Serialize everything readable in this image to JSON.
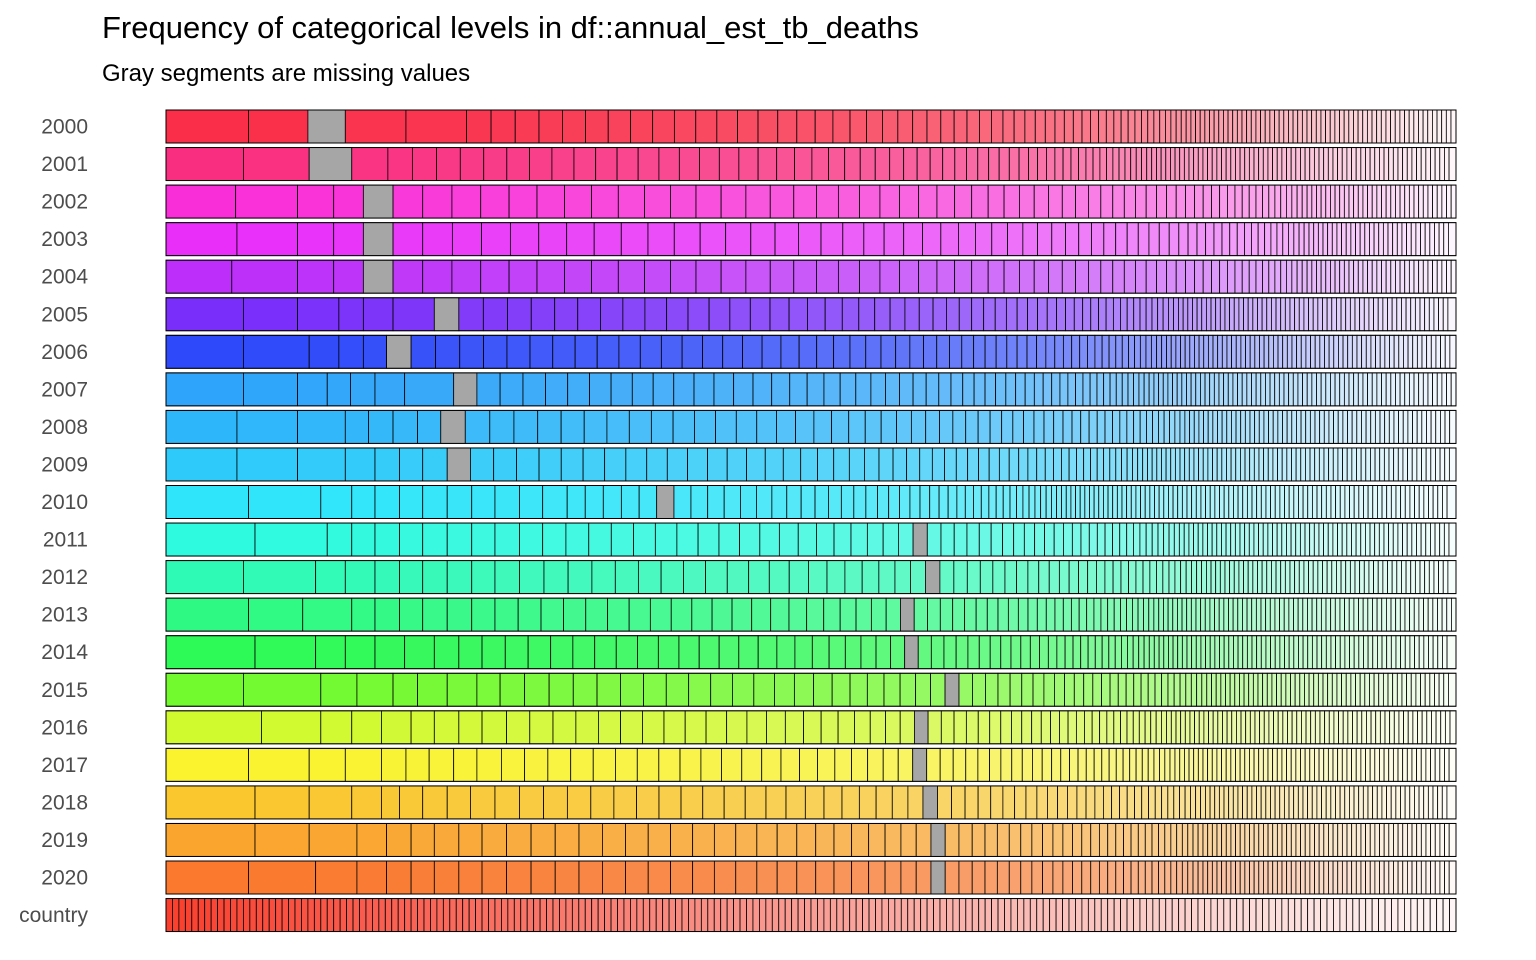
{
  "chart_data": {
    "type": "bar",
    "orientation": "horizontal-stacked",
    "title": "Frequency of categorical levels in df::annual_est_tb_deaths",
    "subtitle": "Gray segments are missing values",
    "missing_color": "#A6A6A6",
    "segment_border_color": "#000000",
    "rows": [
      {
        "label": "2000",
        "hue": 352,
        "missing_after": 2,
        "cuts": [
          0.0,
          0.064,
          0.11,
          0.139,
          0.186,
          0.233
        ]
      },
      {
        "label": "2001",
        "hue": 336,
        "missing_after": 2,
        "cuts": [
          0.0,
          0.06,
          0.111,
          0.144,
          0.172
        ]
      },
      {
        "label": "2002",
        "hue": 310,
        "missing_after": 4,
        "cuts": [
          0.0,
          0.054,
          0.102,
          0.13,
          0.153,
          0.176
        ]
      },
      {
        "label": "2003",
        "hue": 295,
        "missing_after": 4,
        "cuts": [
          0.0,
          0.055,
          0.102,
          0.13,
          0.153,
          0.176,
          0.199
        ]
      },
      {
        "label": "2004",
        "hue": 282,
        "missing_after": 4,
        "cuts": [
          0.0,
          0.051,
          0.102,
          0.13,
          0.153,
          0.176
        ]
      },
      {
        "label": "2005",
        "hue": 262,
        "missing_after": 6,
        "cuts": [
          0.0,
          0.06,
          0.102,
          0.134,
          0.153,
          0.176,
          0.208,
          0.227
        ]
      },
      {
        "label": "2006",
        "hue": 232,
        "missing_after": 5,
        "cuts": [
          0.0,
          0.06,
          0.111,
          0.134,
          0.153,
          0.171,
          0.19
        ]
      },
      {
        "label": "2007",
        "hue": 205,
        "missing_after": 7,
        "cuts": [
          0.0,
          0.06,
          0.102,
          0.125,
          0.143,
          0.162,
          0.185,
          0.223,
          0.241
        ]
      },
      {
        "label": "2008",
        "hue": 200,
        "missing_after": 7,
        "cuts": [
          0.0,
          0.055,
          0.102,
          0.139,
          0.157,
          0.176,
          0.195,
          0.213,
          0.232
        ]
      },
      {
        "label": "2009",
        "hue": 194,
        "missing_after": 7,
        "cuts": [
          0.0,
          0.055,
          0.102,
          0.139,
          0.162,
          0.181,
          0.199,
          0.218,
          0.236
        ]
      },
      {
        "label": "2010",
        "hue": 186,
        "missing_after": 17,
        "cuts": [
          0.0,
          0.064,
          0.12,
          0.144,
          0.162,
          0.181,
          0.199,
          0.218,
          0.237,
          0.255,
          0.274,
          0.292,
          0.311,
          0.325,
          0.339,
          0.325
        ]
      },
      {
        "label": "2011",
        "hue": 172,
        "missing_after": 30,
        "cuts": [
          0.0,
          0.069,
          0.125,
          0.144,
          0.162,
          0.181,
          0.199,
          0.218,
          0.237,
          0.255,
          0.274,
          0.292
        ]
      },
      {
        "label": "2012",
        "hue": 160,
        "missing_after": 30,
        "cuts": [
          0.0,
          0.06,
          0.116,
          0.139,
          0.162,
          0.181,
          0.199,
          0.218,
          0.237,
          0.255,
          0.274
        ]
      },
      {
        "label": "2013",
        "hue": 145,
        "missing_after": 30,
        "cuts": [
          0.0,
          0.064,
          0.106,
          0.144,
          0.162,
          0.181,
          0.199,
          0.218,
          0.237,
          0.255
        ]
      },
      {
        "label": "2014",
        "hue": 132,
        "missing_after": 30,
        "cuts": [
          0.0,
          0.069,
          0.116,
          0.139,
          0.162,
          0.185,
          0.208,
          0.227,
          0.245
        ]
      },
      {
        "label": "2015",
        "hue": 100,
        "missing_after": 30,
        "cuts": [
          0.0,
          0.06,
          0.12,
          0.148,
          0.176,
          0.195,
          0.218,
          0.241,
          0.259,
          0.278
        ]
      },
      {
        "label": "2016",
        "hue": 72,
        "missing_after": 30,
        "cuts": [
          0.0,
          0.074,
          0.12,
          0.144,
          0.167,
          0.19,
          0.208,
          0.227,
          0.245,
          0.264,
          0.282
        ]
      },
      {
        "label": "2017",
        "hue": 58,
        "missing_after": 30,
        "cuts": [
          0.0,
          0.064,
          0.111,
          0.139,
          0.167,
          0.186,
          0.204,
          0.223,
          0.241,
          0.26,
          0.278
        ]
      },
      {
        "label": "2018",
        "hue": 45,
        "missing_after": 30,
        "cuts": [
          0.0,
          0.069,
          0.111,
          0.144,
          0.167,
          0.181,
          0.199,
          0.218,
          0.236,
          0.255
        ]
      },
      {
        "label": "2019",
        "hue": 35,
        "missing_after": 30,
        "cuts": [
          0.0,
          0.069,
          0.111,
          0.148,
          0.171,
          0.19,
          0.208,
          0.227,
          0.245,
          0.264
        ]
      },
      {
        "label": "2020",
        "hue": 22,
        "missing_after": 30,
        "cuts": [
          0.0,
          0.064,
          0.116,
          0.148,
          0.171,
          0.19,
          0.208,
          0.227,
          0.245,
          0.264
        ]
      },
      {
        "label": "country",
        "hue": 5,
        "missing_after": -1,
        "cuts": [
          0.0
        ]
      }
    ]
  }
}
